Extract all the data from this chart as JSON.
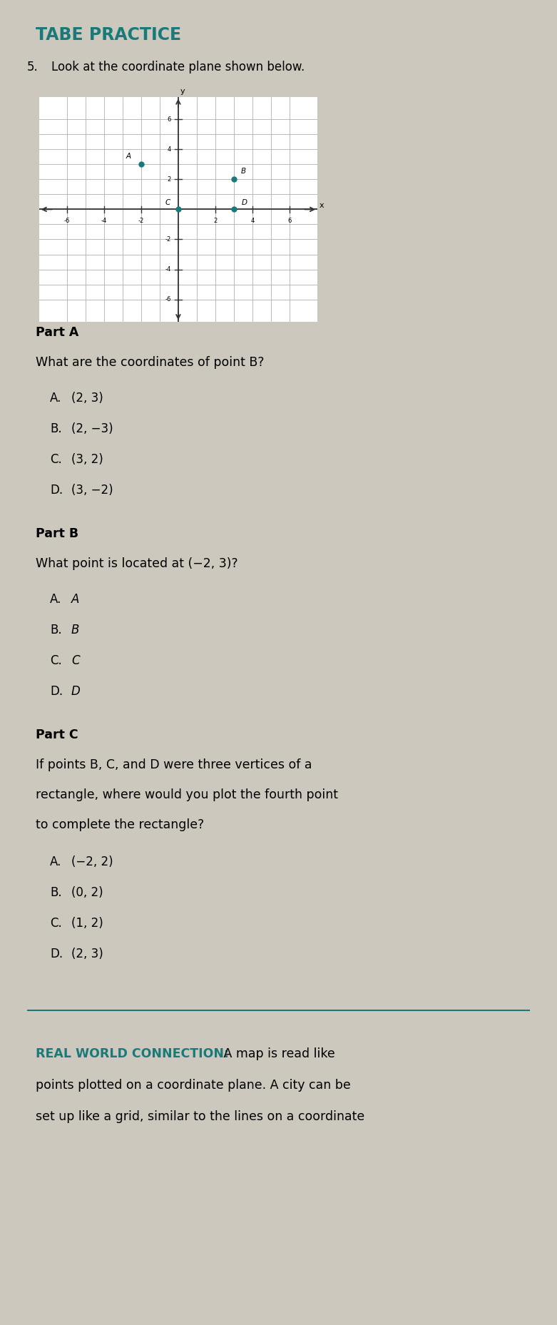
{
  "title": "TABE PRACTICE",
  "title_color": "#1a7a7a",
  "bg_color": "#ccc8be",
  "question_text": "Look at the coordinate plane shown below.",
  "points": {
    "A": [
      -2,
      3
    ],
    "B": [
      3,
      2
    ],
    "C": [
      0,
      0
    ],
    "D": [
      3,
      0
    ]
  },
  "point_color": "#1a7a7a",
  "grid_color": "#b0b0b0",
  "axis_color": "#333333",
  "part_a_label": "Part A",
  "part_a_question": "What are the coordinates of point B?",
  "part_a_options": [
    [
      "A.",
      "(2, 3)"
    ],
    [
      "B.",
      "(2, −3)"
    ],
    [
      "C.",
      "(3, 2)"
    ],
    [
      "D.",
      "(3, −2)"
    ]
  ],
  "part_b_label": "Part B",
  "part_b_question": "What point is located at (−2, 3)?",
  "part_b_options": [
    [
      "A.",
      "A"
    ],
    [
      "B.",
      "B"
    ],
    [
      "C.",
      "C"
    ],
    [
      "D.",
      "D"
    ]
  ],
  "part_c_label": "Part C",
  "part_c_question_lines": [
    "If points B, C, and D were three vertices of a",
    "rectangle, where would you plot the fourth point",
    "to complete the rectangle?"
  ],
  "part_c_options": [
    [
      "A.",
      "(−2, 2)"
    ],
    [
      "B.",
      "(0, 2)"
    ],
    [
      "C.",
      "(1, 2)"
    ],
    [
      "D.",
      "(2, 3)"
    ]
  ],
  "rwc_label": "REAL WORLD CONNECTION:",
  "rwc_text_lines": [
    " A map is read like",
    "points plotted on a coordinate plane. A city can be",
    "set up like a grid, similar to the lines on a coordinate"
  ],
  "rwc_color": "#1a7a7a",
  "separator_color": "#1a7a7a",
  "graph_x_ticks": [
    -6,
    -4,
    -2,
    2,
    4,
    6
  ],
  "graph_y_ticks": [
    -6,
    -4,
    -2,
    2,
    4,
    6
  ]
}
